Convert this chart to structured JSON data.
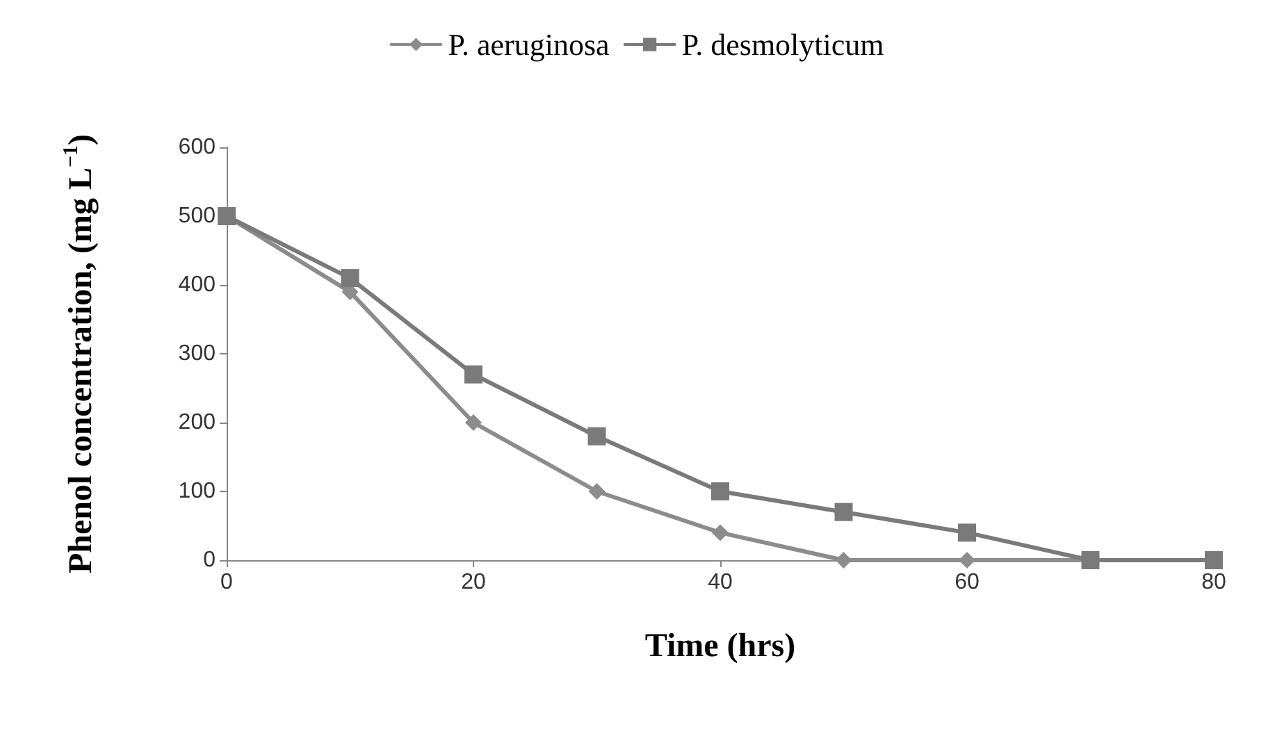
{
  "chart_data": {
    "type": "line",
    "xlabel": "Time (hrs)",
    "ylabel": "Phenol concentration, (mg L$^{−1}$)",
    "x": [
      0,
      10,
      20,
      30,
      40,
      50,
      60,
      70,
      80
    ],
    "series": [
      {
        "name": "P. aeruginosa",
        "color": "#8c8c8c",
        "marker": "diamond",
        "values": [
          500,
          390,
          200,
          100,
          40,
          0,
          0,
          0,
          0
        ]
      },
      {
        "name": "P. desmolyticum",
        "color": "#7a7a7a",
        "marker": "square",
        "values": [
          500,
          410,
          270,
          180,
          100,
          70,
          40,
          0,
          0
        ]
      }
    ],
    "xlim": [
      0,
      80
    ],
    "xticks": [
      0,
      20,
      40,
      60,
      80
    ],
    "ylim": [
      0,
      600
    ],
    "yticks": [
      0,
      100,
      200,
      300,
      400,
      500,
      600
    ],
    "grid": false,
    "legend": "top",
    "line_style": "solid"
  }
}
